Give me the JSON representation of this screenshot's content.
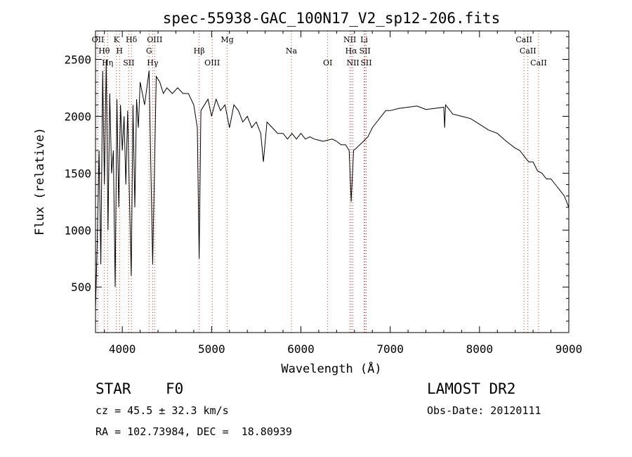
{
  "chart_data": {
    "type": "line",
    "title": "spec-55938-GAC_100N17_V2_sp12-206.fits",
    "xlabel": "Wavelength (Å)",
    "ylabel": "Flux (relative)",
    "xlim": [
      3700,
      9000
    ],
    "ylim": [
      100,
      2750
    ],
    "xticks": [
      4000,
      5000,
      6000,
      7000,
      8000,
      9000
    ],
    "yticks": [
      500,
      1000,
      1500,
      2000,
      2500
    ],
    "grid": false,
    "series": [
      {
        "x": [
          3700,
          3720,
          3740,
          3760,
          3780,
          3800,
          3820,
          3840,
          3860,
          3880,
          3900,
          3920,
          3940,
          3960,
          3980,
          4000,
          4020,
          4040,
          4060,
          4080,
          4100,
          4120,
          4140,
          4160,
          4180,
          4200,
          4250,
          4300,
          4340,
          4380,
          4420,
          4460,
          4500,
          4560,
          4620,
          4680,
          4740,
          4800,
          4840,
          4861,
          4880,
          4920,
          4960,
          5000,
          5050,
          5100,
          5150,
          5200,
          5250,
          5300,
          5350,
          5400,
          5450,
          5500,
          5550,
          5580,
          5620,
          5680,
          5740,
          5800,
          5850,
          5900,
          5950,
          6000,
          6050,
          6100,
          6150,
          6200,
          6250,
          6300,
          6350,
          6400,
          6450,
          6500,
          6540,
          6563,
          6590,
          6620,
          6660,
          6700,
          6750,
          6800,
          6850,
          6900,
          6950,
          7000,
          7100,
          7200,
          7300,
          7400,
          7500,
          7600,
          7610,
          7620,
          7700,
          7800,
          7900,
          8000,
          8100,
          8200,
          8300,
          8400,
          8450,
          8500,
          8550,
          8600,
          8650,
          8700,
          8750,
          8800,
          8850,
          8900,
          8950,
          9000
        ],
        "y": [
          300,
          900,
          1700,
          700,
          2400,
          1400,
          2500,
          1000,
          2200,
          1500,
          1700,
          500,
          2150,
          1200,
          2100,
          1700,
          2000,
          1400,
          2050,
          1300,
          600,
          2100,
          1200,
          2150,
          1900,
          2300,
          2100,
          2400,
          700,
          2350,
          2300,
          2200,
          2250,
          2200,
          2250,
          2200,
          2200,
          2100,
          1900,
          750,
          2050,
          2100,
          2150,
          2000,
          2150,
          2050,
          2100,
          1900,
          2100,
          2050,
          1950,
          2000,
          1900,
          1950,
          1850,
          1600,
          1950,
          1900,
          1850,
          1850,
          1800,
          1850,
          1800,
          1850,
          1800,
          1820,
          1800,
          1790,
          1780,
          1790,
          1800,
          1780,
          1750,
          1750,
          1700,
          1250,
          1700,
          1720,
          1750,
          1780,
          1820,
          1900,
          1950,
          2000,
          2050,
          2050,
          2070,
          2080,
          2090,
          2060,
          2070,
          2080,
          1900,
          2100,
          2020,
          2000,
          1980,
          1930,
          1880,
          1850,
          1780,
          1720,
          1700,
          1650,
          1600,
          1600,
          1520,
          1500,
          1450,
          1450,
          1400,
          1350,
          1300,
          1200
        ]
      }
    ],
    "lines": [
      {
        "label": "OII",
        "x": 3727,
        "color": "#d03030"
      },
      {
        "label": "Hθ",
        "x": 3797,
        "color": "#d03030"
      },
      {
        "label": "Hη",
        "x": 3835,
        "color": "#d03030"
      },
      {
        "label": "K",
        "x": 3934,
        "color": "#d03030"
      },
      {
        "label": "H",
        "x": 3969,
        "color": "#d03030"
      },
      {
        "label": "SII",
        "x": 4072,
        "color": "#d03030"
      },
      {
        "label": "Hδ",
        "x": 4102,
        "color": "#d03030"
      },
      {
        "label": "G",
        "x": 4300,
        "color": "#d03030"
      },
      {
        "label": "Hγ",
        "x": 4340,
        "color": "#d03030"
      },
      {
        "label": "OIII",
        "x": 4363,
        "color": "#d03030"
      },
      {
        "label": "Hβ",
        "x": 4861,
        "color": "#d03030"
      },
      {
        "label": "OIII",
        "x": 5007,
        "color": "#d03030"
      },
      {
        "label": "Mg",
        "x": 5175,
        "color": "#d03030"
      },
      {
        "label": "Na",
        "x": 5894,
        "color": "#d03030"
      },
      {
        "label": "OI",
        "x": 6300,
        "color": "#d03030"
      },
      {
        "label": "NII",
        "x": 6548,
        "color": "#d03030"
      },
      {
        "label": "Hα",
        "x": 6563,
        "color": "#d03030"
      },
      {
        "label": "NII",
        "x": 6583,
        "color": "#d03030"
      },
      {
        "label": "Li",
        "x": 6708,
        "color": "#d03030"
      },
      {
        "label": "SII",
        "x": 6717,
        "color": "#d03030"
      },
      {
        "label": "SII",
        "x": 6731,
        "color": "#d03030"
      },
      {
        "label": "CaII",
        "x": 8498,
        "color": "#d03030"
      },
      {
        "label": "CaII",
        "x": 8542,
        "color": "#d03030"
      },
      {
        "label": "CaII",
        "x": 8662,
        "color": "#d03030"
      }
    ]
  },
  "info": {
    "object_class": "STAR",
    "subclass": "F0",
    "cz": "cz = 45.5 ± 32.3 km/s",
    "coords": "RA = 102.73984, DEC =  18.80939",
    "survey": "LAMOST DR2",
    "obs_date": "Obs-Date: 20120111"
  }
}
